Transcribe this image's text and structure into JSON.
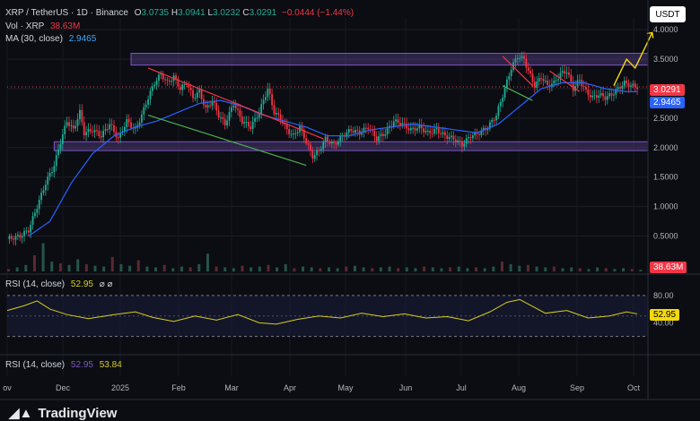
{
  "header": {
    "symbol": "XRP / TetherUS · 1D · Binance",
    "o_label": "O",
    "o_value": "3.0735",
    "h_label": "H",
    "h_value": "3.0941",
    "l_label": "L",
    "l_value": "3.0232",
    "c_label": "C",
    "c_value": "3.0291",
    "change": "−0.0444 (−1.44%)",
    "vol_label": "Vol · XRP",
    "vol_value": "38.63M",
    "ma_label": "MA (30, close)",
    "ma_value": "2.9465"
  },
  "currency_button": "USDT",
  "price_tags": {
    "last": "3.0291",
    "ma": "2.9465",
    "volume": "38.63M",
    "rsi": "52.95"
  },
  "rsi_header": {
    "label": "RSI (14, close)",
    "value": "52.95",
    "icons": "⌀ ⌀"
  },
  "rsi_header2": {
    "label": "RSI (14, close)",
    "value1": "52.95",
    "value2": "53.84"
  },
  "brand": "TradingView",
  "colors": {
    "bg": "#0b0d12",
    "up": "#22ab94",
    "down": "#f23645",
    "ma": "#2962ff",
    "zone": "#7e57c2",
    "trend_red": "#f23645",
    "trend_green": "#4caf50",
    "arrow": "#f5d90a",
    "rsi": "#d7cc1f"
  },
  "chart_data": {
    "type": "candlestick",
    "x_labels": [
      "ov",
      "Dec",
      "2025",
      "Feb",
      "Mar",
      "Apr",
      "May",
      "Jun",
      "Jul",
      "Aug",
      "Sep",
      "Oct"
    ],
    "y_ticks": [
      "4.0000",
      "3.5000",
      "3.0000",
      "2.5000",
      "2.0000",
      "1.5000",
      "1.0000",
      "0.5000"
    ],
    "ylim": [
      0.25,
      4.2
    ],
    "close_points": [
      [
        0,
        0.45
      ],
      [
        6,
        0.5
      ],
      [
        10,
        0.6
      ],
      [
        14,
        1.0
      ],
      [
        18,
        1.4
      ],
      [
        22,
        1.7
      ],
      [
        25,
        2.1
      ],
      [
        28,
        2.45
      ],
      [
        31,
        2.3
      ],
      [
        34,
        2.6
      ],
      [
        36,
        2.25
      ],
      [
        40,
        2.3
      ],
      [
        44,
        2.2
      ],
      [
        48,
        2.4
      ],
      [
        52,
        2.15
      ],
      [
        56,
        2.45
      ],
      [
        60,
        2.3
      ],
      [
        63,
        2.55
      ],
      [
        66,
        2.85
      ],
      [
        69,
        3.1
      ],
      [
        72,
        3.25
      ],
      [
        75,
        3.1
      ],
      [
        78,
        3.2
      ],
      [
        81,
        3.0
      ],
      [
        84,
        3.1
      ],
      [
        87,
        2.85
      ],
      [
        90,
        2.95
      ],
      [
        93,
        2.65
      ],
      [
        96,
        2.8
      ],
      [
        99,
        2.55
      ],
      [
        102,
        2.4
      ],
      [
        106,
        2.75
      ],
      [
        110,
        2.45
      ],
      [
        114,
        2.35
      ],
      [
        118,
        2.6
      ],
      [
        122,
        3.0
      ],
      [
        125,
        2.6
      ],
      [
        128,
        2.5
      ],
      [
        131,
        2.3
      ],
      [
        134,
        2.2
      ],
      [
        137,
        2.35
      ],
      [
        140,
        2.1
      ],
      [
        143,
        1.85
      ],
      [
        146,
        1.95
      ],
      [
        149,
        2.15
      ],
      [
        153,
        2.05
      ],
      [
        157,
        2.2
      ],
      [
        161,
        2.3
      ],
      [
        165,
        2.25
      ],
      [
        169,
        2.35
      ],
      [
        173,
        2.15
      ],
      [
        177,
        2.25
      ],
      [
        181,
        2.45
      ],
      [
        185,
        2.4
      ],
      [
        189,
        2.3
      ],
      [
        193,
        2.35
      ],
      [
        197,
        2.25
      ],
      [
        201,
        2.3
      ],
      [
        205,
        2.2
      ],
      [
        209,
        2.15
      ],
      [
        213,
        2.05
      ],
      [
        217,
        2.2
      ],
      [
        221,
        2.25
      ],
      [
        225,
        2.35
      ],
      [
        229,
        2.55
      ],
      [
        233,
        3.0
      ],
      [
        236,
        3.35
      ],
      [
        239,
        3.55
      ],
      [
        242,
        3.5
      ],
      [
        244,
        3.3
      ],
      [
        247,
        3.05
      ],
      [
        250,
        3.2
      ],
      [
        253,
        3.05
      ],
      [
        256,
        3.1
      ],
      [
        259,
        3.25
      ],
      [
        262,
        3.3
      ],
      [
        265,
        3.0
      ],
      [
        268,
        3.15
      ],
      [
        271,
        2.95
      ],
      [
        274,
        2.85
      ],
      [
        277,
        2.9
      ],
      [
        280,
        2.85
      ],
      [
        283,
        2.9
      ],
      [
        286,
        3.0
      ],
      [
        289,
        3.1
      ],
      [
        292,
        3.05
      ],
      [
        295,
        3.03
      ]
    ],
    "ma_points": [
      [
        10,
        0.5
      ],
      [
        20,
        0.75
      ],
      [
        30,
        1.4
      ],
      [
        40,
        1.9
      ],
      [
        50,
        2.2
      ],
      [
        60,
        2.35
      ],
      [
        70,
        2.45
      ],
      [
        80,
        2.6
      ],
      [
        90,
        2.75
      ],
      [
        100,
        2.8
      ],
      [
        110,
        2.7
      ],
      [
        120,
        2.55
      ],
      [
        130,
        2.45
      ],
      [
        140,
        2.35
      ],
      [
        150,
        2.2
      ],
      [
        160,
        2.2
      ],
      [
        170,
        2.3
      ],
      [
        180,
        2.35
      ],
      [
        190,
        2.4
      ],
      [
        200,
        2.35
      ],
      [
        210,
        2.3
      ],
      [
        220,
        2.25
      ],
      [
        230,
        2.4
      ],
      [
        240,
        2.7
      ],
      [
        250,
        3.0
      ],
      [
        260,
        3.1
      ],
      [
        270,
        3.1
      ],
      [
        280,
        3.0
      ],
      [
        290,
        2.95
      ],
      [
        295,
        2.95
      ]
    ],
    "volume_points": [
      3,
      5,
      8,
      20,
      35,
      12,
      10,
      8,
      15,
      9,
      7,
      6,
      18,
      9,
      7,
      14,
      6,
      5,
      8,
      4,
      6,
      5,
      9,
      22,
      6,
      5,
      4,
      7,
      5,
      6,
      8,
      5,
      9,
      4,
      6,
      5,
      4,
      5,
      4,
      6,
      7,
      5,
      4,
      5,
      6,
      4,
      5,
      4,
      6,
      5,
      4,
      5,
      6,
      4,
      5,
      4,
      6,
      12,
      9,
      7,
      8,
      6,
      5,
      6,
      4,
      5,
      4,
      3,
      5,
      4,
      3,
      4,
      3,
      2
    ],
    "rsi_points": [
      [
        0,
        58
      ],
      [
        8,
        65
      ],
      [
        14,
        72
      ],
      [
        20,
        60
      ],
      [
        28,
        52
      ],
      [
        38,
        46
      ],
      [
        50,
        52
      ],
      [
        60,
        56
      ],
      [
        68,
        48
      ],
      [
        78,
        42
      ],
      [
        88,
        50
      ],
      [
        98,
        44
      ],
      [
        108,
        52
      ],
      [
        118,
        40
      ],
      [
        126,
        38
      ],
      [
        136,
        45
      ],
      [
        146,
        50
      ],
      [
        156,
        47
      ],
      [
        166,
        54
      ],
      [
        176,
        49
      ],
      [
        186,
        53
      ],
      [
        196,
        47
      ],
      [
        206,
        49
      ],
      [
        216,
        43
      ],
      [
        226,
        56
      ],
      [
        234,
        70
      ],
      [
        240,
        74
      ],
      [
        246,
        64
      ],
      [
        252,
        54
      ],
      [
        262,
        58
      ],
      [
        272,
        47
      ],
      [
        282,
        50
      ],
      [
        290,
        56
      ],
      [
        295,
        53
      ]
    ],
    "rsi_levels": [
      "80.00",
      "50.00",
      "40.00"
    ],
    "annotations": {
      "resistance_zone": [
        3.4,
        3.6
      ],
      "support_zone": [
        1.95,
        2.1
      ],
      "projection_arrow": "yellow zigzag up to 4.0"
    }
  }
}
